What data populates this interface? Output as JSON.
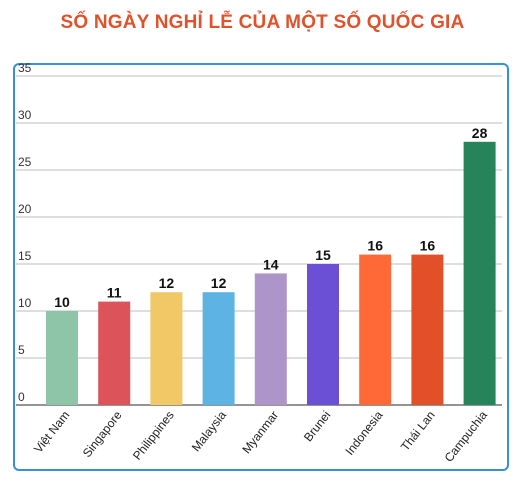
{
  "chart_data": {
    "type": "bar",
    "title": "SỐ NGÀY NGHỈ LỄ CỦA MỘT SỐ QUỐC GIA",
    "categories": [
      "Việt Nam",
      "Singapore",
      "Philippines",
      "Malaysia",
      "Myanmar",
      "Brunei",
      "Indonesia",
      "Thái Lan",
      "Campuchia"
    ],
    "values": [
      10,
      11,
      12,
      12,
      14,
      15,
      16,
      16,
      28
    ],
    "colors": [
      "#8ec5a8",
      "#dc5459",
      "#f0c866",
      "#5db4e4",
      "#ad95c9",
      "#6b50d5",
      "#fe6937",
      "#e2502a",
      "#27845a"
    ],
    "yticks": [
      0,
      5,
      10,
      15,
      20,
      25,
      30,
      35
    ],
    "ylim": [
      0,
      35
    ],
    "grid": true,
    "title_color": "#e0522b",
    "frame_color": "#3a8fd6"
  }
}
